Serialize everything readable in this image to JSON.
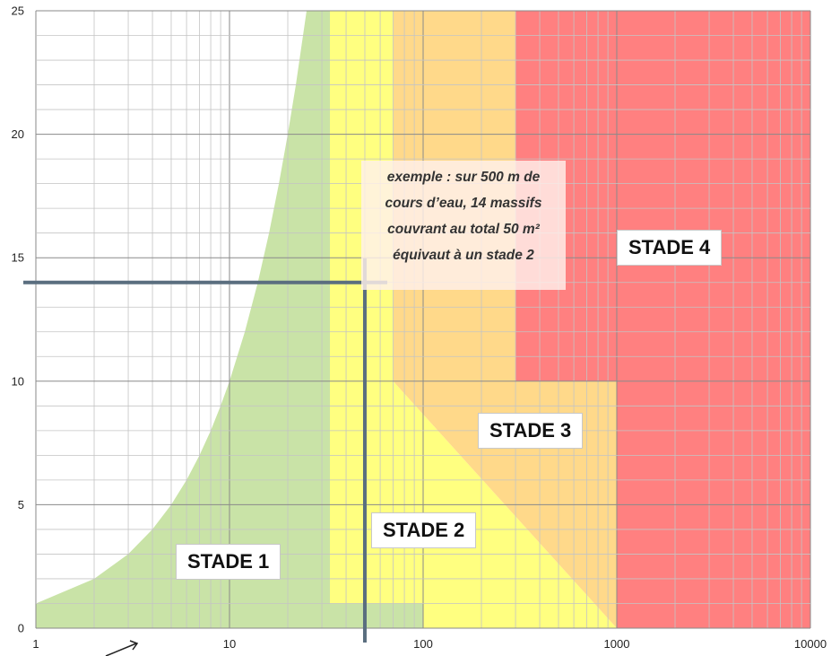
{
  "chart_data": {
    "type": "area",
    "x_scale": "log",
    "xlim": [
      1,
      10000
    ],
    "ylim": [
      0,
      25
    ],
    "x_ticks": [
      "1",
      "10",
      "100",
      "1000",
      "10000"
    ],
    "y_ticks": [
      "0",
      "5",
      "10",
      "15",
      "20",
      "25"
    ],
    "grid": true,
    "regions": [
      {
        "name": "STADE 1",
        "color": "#c9e3a7",
        "boundary": [
          {
            "x": 1,
            "y": 1
          },
          {
            "x": 2,
            "y": 2
          },
          {
            "x": 3,
            "y": 3
          },
          {
            "x": 4,
            "y": 4
          },
          {
            "x": 5,
            "y": 5
          },
          {
            "x": 6,
            "y": 6
          },
          {
            "x": 7,
            "y": 7
          },
          {
            "x": 8,
            "y": 8
          },
          {
            "x": 9,
            "y": 9
          },
          {
            "x": 10,
            "y": 10
          },
          {
            "x": 12,
            "y": 12
          },
          {
            "x": 14,
            "y": 14
          },
          {
            "x": 16,
            "y": 16
          },
          {
            "x": 18,
            "y": 18
          },
          {
            "x": 20,
            "y": 20
          },
          {
            "x": 22,
            "y": 22
          },
          {
            "x": 25,
            "y": 25
          },
          {
            "x": 33,
            "y": 25
          },
          {
            "x": 33,
            "y": 1
          },
          {
            "x": 100,
            "y": 1
          },
          {
            "x": 100,
            "y": 0
          },
          {
            "x": 1,
            "y": 0
          }
        ]
      },
      {
        "name": "STADE 2",
        "color": "#ffff80",
        "boundary": [
          {
            "x": 33,
            "y": 25
          },
          {
            "x": 70,
            "y": 25
          },
          {
            "x": 70,
            "y": 10
          },
          {
            "x": 1000,
            "y": 0
          },
          {
            "x": 100,
            "y": 0
          },
          {
            "x": 100,
            "y": 1
          },
          {
            "x": 33,
            "y": 1
          }
        ]
      },
      {
        "name": "STADE 3",
        "color": "#ffd98a",
        "boundary": [
          {
            "x": 70,
            "y": 25
          },
          {
            "x": 300,
            "y": 25
          },
          {
            "x": 300,
            "y": 10
          },
          {
            "x": 1000,
            "y": 10
          },
          {
            "x": 1000,
            "y": 0
          },
          {
            "x": 70,
            "y": 10
          }
        ]
      },
      {
        "name": "STADE 4",
        "color": "#ff8080",
        "boundary": [
          {
            "x": 300,
            "y": 25
          },
          {
            "x": 10000,
            "y": 25
          },
          {
            "x": 10000,
            "y": 0
          },
          {
            "x": 1000,
            "y": 0
          },
          {
            "x": 1000,
            "y": 10
          },
          {
            "x": 300,
            "y": 10
          }
        ]
      }
    ],
    "example_point": {
      "x": 50,
      "y": 14,
      "color": "#5a6e7f"
    },
    "annotation": {
      "lines": [
        "exemple :  sur 500 m de",
        "cours d’eau, 14 massifs",
        "couvrant au total 50 m²",
        "équivaut à un stade 2"
      ]
    }
  }
}
